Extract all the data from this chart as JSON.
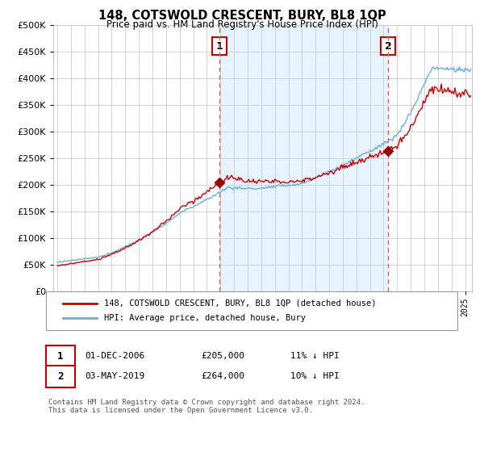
{
  "title": "148, COTSWOLD CRESCENT, BURY, BL8 1QP",
  "subtitle": "Price paid vs. HM Land Registry's House Price Index (HPI)",
  "ytick_values": [
    0,
    50000,
    100000,
    150000,
    200000,
    250000,
    300000,
    350000,
    400000,
    450000,
    500000
  ],
  "ylim": [
    0,
    500000
  ],
  "xlim_start": 1994.7,
  "xlim_end": 2025.5,
  "sale1_date": 2006.92,
  "sale1_price": 205000,
  "sale2_date": 2019.34,
  "sale2_price": 264000,
  "hpi_line_color": "#6baed6",
  "sale_line_color": "#cc0000",
  "vline_color": "#e06060",
  "dot_color": "#990000",
  "fill_color": "#ddeeff",
  "legend_property_label": "148, COTSWOLD CRESCENT, BURY, BL8 1QP (detached house)",
  "legend_hpi_label": "HPI: Average price, detached house, Bury",
  "footnote": "Contains HM Land Registry data © Crown copyright and database right 2024.\nThis data is licensed under the Open Government Licence v3.0.",
  "background_color": "#ffffff",
  "plot_bg_color": "#ffffff",
  "grid_color": "#cccccc"
}
